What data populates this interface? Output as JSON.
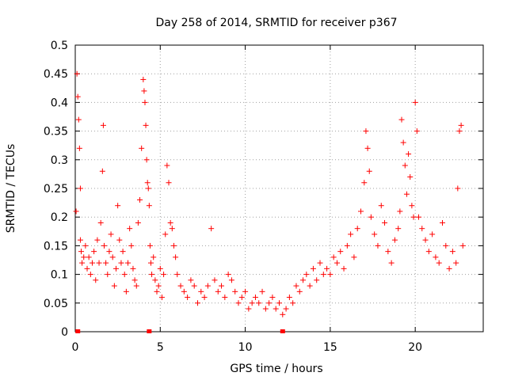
{
  "chart_data": {
    "type": "scatter",
    "title": "Day 258 of 2014, SRMTID for receiver p367",
    "xlabel": "GPS time / hours",
    "ylabel": "SRMTID / TECUs",
    "xlim": [
      0,
      24
    ],
    "ylim": [
      0,
      0.5
    ],
    "x_ticks": [
      0,
      5,
      10,
      15,
      20
    ],
    "x_tick_labels": [
      "0",
      "5",
      "10",
      "15",
      "20"
    ],
    "y_ticks": [
      0,
      0.05,
      0.1,
      0.15,
      0.2,
      0.25,
      0.3,
      0.35,
      0.4,
      0.45,
      0.5
    ],
    "y_tick_labels": [
      "0",
      "0.05",
      "0.1",
      "0.15",
      "0.2",
      "0.25",
      "0.3",
      "0.35",
      "0.4",
      "0.45",
      "0.5"
    ],
    "grid": true,
    "marker": "+",
    "color": "#ff0000",
    "series": [
      {
        "name": "SRMTID",
        "x": [
          0.05,
          0.1,
          0.15,
          0.2,
          0.25,
          0.3,
          0.3,
          0.35,
          0.4,
          0.5,
          0.6,
          0.7,
          0.8,
          0.9,
          1.0,
          1.1,
          1.2,
          1.3,
          1.4,
          1.5,
          1.6,
          1.65,
          1.7,
          1.8,
          1.9,
          2.0,
          2.1,
          2.2,
          2.3,
          2.4,
          2.5,
          2.6,
          2.7,
          2.8,
          2.9,
          3.0,
          3.1,
          3.2,
          3.3,
          3.4,
          3.5,
          3.6,
          3.7,
          3.8,
          3.9,
          4.0,
          4.05,
          4.1,
          4.15,
          4.2,
          4.25,
          4.3,
          4.35,
          4.4,
          4.45,
          4.5,
          4.6,
          4.7,
          4.8,
          4.9,
          5.0,
          5.1,
          5.2,
          5.3,
          5.4,
          5.5,
          5.6,
          5.7,
          5.8,
          5.9,
          6.0,
          6.2,
          6.4,
          6.6,
          6.8,
          7.0,
          7.2,
          7.4,
          7.6,
          7.8,
          8.0,
          8.2,
          8.4,
          8.6,
          8.8,
          9.0,
          9.2,
          9.4,
          9.6,
          9.8,
          10.0,
          10.2,
          10.4,
          10.6,
          10.8,
          11.0,
          11.2,
          11.4,
          11.6,
          11.8,
          12.0,
          12.2,
          12.4,
          12.6,
          12.8,
          13.0,
          13.2,
          13.4,
          13.6,
          13.8,
          14.0,
          14.2,
          14.4,
          14.6,
          14.8,
          15.0,
          15.2,
          15.4,
          15.6,
          15.8,
          16.0,
          16.2,
          16.4,
          16.6,
          16.8,
          17.0,
          17.1,
          17.2,
          17.3,
          17.4,
          17.6,
          17.8,
          18.0,
          18.2,
          18.4,
          18.6,
          18.8,
          19.0,
          19.1,
          19.2,
          19.3,
          19.4,
          19.5,
          19.6,
          19.7,
          19.8,
          19.9,
          20.0,
          20.1,
          20.2,
          20.4,
          20.6,
          20.8,
          21.0,
          21.2,
          21.4,
          21.6,
          21.8,
          22.0,
          22.2,
          22.4,
          22.5,
          22.6,
          22.7,
          22.8
        ],
        "y": [
          0.21,
          0.45,
          0.41,
          0.37,
          0.32,
          0.25,
          0.16,
          0.14,
          0.12,
          0.13,
          0.15,
          0.11,
          0.13,
          0.1,
          0.12,
          0.14,
          0.09,
          0.16,
          0.12,
          0.19,
          0.28,
          0.36,
          0.15,
          0.12,
          0.1,
          0.14,
          0.17,
          0.13,
          0.08,
          0.11,
          0.22,
          0.16,
          0.12,
          0.14,
          0.1,
          0.07,
          0.12,
          0.18,
          0.15,
          0.11,
          0.09,
          0.08,
          0.19,
          0.23,
          0.32,
          0.44,
          0.42,
          0.4,
          0.36,
          0.3,
          0.26,
          0.25,
          0.22,
          0.15,
          0.12,
          0.1,
          0.13,
          0.09,
          0.07,
          0.08,
          0.11,
          0.06,
          0.1,
          0.17,
          0.29,
          0.26,
          0.19,
          0.18,
          0.15,
          0.13,
          0.1,
          0.08,
          0.07,
          0.06,
          0.09,
          0.08,
          0.05,
          0.07,
          0.06,
          0.08,
          0.18,
          0.09,
          0.07,
          0.08,
          0.06,
          0.1,
          0.09,
          0.07,
          0.05,
          0.06,
          0.07,
          0.04,
          0.05,
          0.06,
          0.05,
          0.07,
          0.04,
          0.05,
          0.06,
          0.04,
          0.05,
          0.03,
          0.04,
          0.06,
          0.05,
          0.08,
          0.07,
          0.09,
          0.1,
          0.08,
          0.11,
          0.09,
          0.12,
          0.1,
          0.11,
          0.1,
          0.13,
          0.12,
          0.14,
          0.11,
          0.15,
          0.17,
          0.13,
          0.18,
          0.21,
          0.26,
          0.35,
          0.32,
          0.28,
          0.2,
          0.17,
          0.15,
          0.22,
          0.19,
          0.14,
          0.12,
          0.16,
          0.18,
          0.21,
          0.37,
          0.33,
          0.29,
          0.24,
          0.31,
          0.27,
          0.22,
          0.2,
          0.4,
          0.35,
          0.2,
          0.18,
          0.16,
          0.14,
          0.17,
          0.13,
          0.12,
          0.19,
          0.15,
          0.11,
          0.14,
          0.12,
          0.25,
          0.35,
          0.36,
          0.15
        ],
        "zero_markers_x": [
          0.15,
          4.35,
          12.2
        ]
      }
    ]
  }
}
